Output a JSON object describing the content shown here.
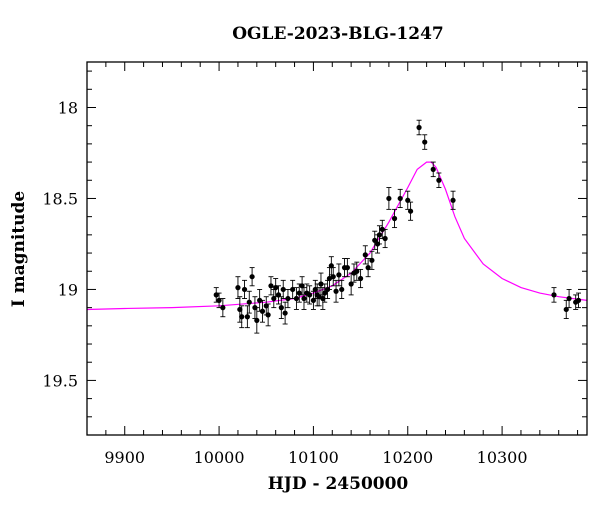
{
  "chart_data": {
    "type": "scatter",
    "title": "OGLE-2023-BLG-1247",
    "xlabel": "HJD - 2450000",
    "ylabel": "I magnitude",
    "xlim": [
      9860,
      10390
    ],
    "ylim": [
      19.8,
      17.75
    ],
    "y_inverted": true,
    "grid": false,
    "x_ticks": [
      {
        "value": 9900,
        "label": "9900"
      },
      {
        "value": 10000,
        "label": "10000"
      },
      {
        "value": 10100,
        "label": "10100"
      },
      {
        "value": 10200,
        "label": "10200"
      },
      {
        "value": 10300,
        "label": "10300"
      }
    ],
    "y_ticks": [
      {
        "value": 18.0,
        "label": "18"
      },
      {
        "value": 18.5,
        "label": "18.5"
      },
      {
        "value": 19.0,
        "label": "19"
      },
      {
        "value": 19.5,
        "label": "19.5"
      }
    ],
    "colors": {
      "data": "#000000",
      "model": "#ff00ff",
      "axes": "#000000"
    },
    "model": {
      "name": "",
      "color": "#ff00ff",
      "x": [
        9860,
        9900,
        9950,
        10000,
        10050,
        10080,
        10100,
        10120,
        10140,
        10160,
        10180,
        10200,
        10210,
        10220,
        10225,
        10230,
        10240,
        10250,
        10260,
        10280,
        10300,
        10320,
        10340,
        10360,
        10390
      ],
      "y": [
        19.11,
        19.105,
        19.1,
        19.09,
        19.07,
        19.05,
        19.02,
        18.98,
        18.91,
        18.8,
        18.63,
        18.44,
        18.34,
        18.3,
        18.3,
        18.33,
        18.45,
        18.6,
        18.72,
        18.86,
        18.94,
        18.99,
        19.02,
        19.04,
        19.06
      ]
    },
    "series": [
      {
        "name": "",
        "x": [
          9997,
          10000,
          10004,
          10020,
          10022,
          10024,
          10027,
          10030,
          10032,
          10035,
          10038,
          10040,
          10043,
          10046,
          10050,
          10052,
          10055,
          10058,
          10060,
          10063,
          10066,
          10068,
          10070,
          10073,
          10078,
          10082,
          10085,
          10088,
          10090,
          10093,
          10096,
          10100,
          10102,
          10104,
          10106,
          10108,
          10110,
          10112,
          10115,
          10117,
          10119,
          10121,
          10124,
          10127,
          10130,
          10133,
          10136,
          10140,
          10143,
          10146,
          10150,
          10155,
          10158,
          10162,
          10165,
          10168,
          10170,
          10173,
          10176,
          10180,
          10186,
          10192,
          10200,
          10203,
          10212,
          10218,
          10227,
          10233,
          10248,
          10355,
          10368,
          10371,
          10378,
          10381
        ],
        "y": [
          19.03,
          19.06,
          19.1,
          18.99,
          19.11,
          19.15,
          19.0,
          19.15,
          19.07,
          18.93,
          19.1,
          19.17,
          19.06,
          19.12,
          19.09,
          19.14,
          18.98,
          19.05,
          18.99,
          19.03,
          19.1,
          19.0,
          19.13,
          19.05,
          19.0,
          19.05,
          19.02,
          18.98,
          19.05,
          19.02,
          19.03,
          19.06,
          19.0,
          19.03,
          19.04,
          18.97,
          19.05,
          19.02,
          19.0,
          18.94,
          18.87,
          18.93,
          19.01,
          18.92,
          19.0,
          18.88,
          18.88,
          18.97,
          18.91,
          18.9,
          18.94,
          18.81,
          18.88,
          18.84,
          18.73,
          18.75,
          18.7,
          18.67,
          18.72,
          18.5,
          18.61,
          18.5,
          18.51,
          18.57,
          18.11,
          18.19,
          18.34,
          18.4,
          18.51,
          19.03,
          19.11,
          19.05,
          19.07,
          19.06
        ],
        "err": [
          0.04,
          0.04,
          0.05,
          0.06,
          0.07,
          0.06,
          0.05,
          0.06,
          0.06,
          0.05,
          0.06,
          0.07,
          0.06,
          0.06,
          0.05,
          0.06,
          0.05,
          0.05,
          0.05,
          0.05,
          0.06,
          0.05,
          0.06,
          0.05,
          0.05,
          0.06,
          0.05,
          0.05,
          0.06,
          0.05,
          0.05,
          0.05,
          0.05,
          0.06,
          0.05,
          0.06,
          0.06,
          0.05,
          0.05,
          0.06,
          0.05,
          0.05,
          0.06,
          0.06,
          0.05,
          0.05,
          0.05,
          0.06,
          0.05,
          0.05,
          0.05,
          0.05,
          0.05,
          0.05,
          0.05,
          0.05,
          0.05,
          0.05,
          0.05,
          0.06,
          0.05,
          0.05,
          0.05,
          0.05,
          0.04,
          0.04,
          0.04,
          0.04,
          0.05,
          0.04,
          0.05,
          0.05,
          0.04,
          0.04
        ]
      }
    ]
  }
}
